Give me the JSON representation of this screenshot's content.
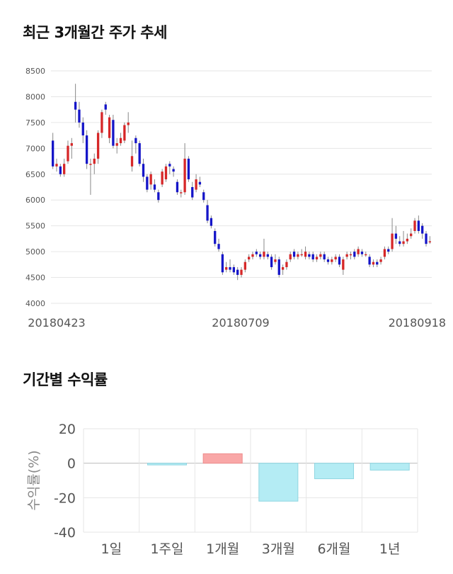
{
  "sections": {
    "price_title": "최근 3개월간 주가 추세",
    "return_title": "기간별 수익률"
  },
  "colors": {
    "up": "#d62728",
    "down": "#1515c8",
    "wick": "#888888",
    "grid": "#e6e6e6",
    "positive_bar": "#f9a7a7",
    "negative_bar": "#b4ecf4"
  },
  "chart_data": [
    {
      "type": "candlestick",
      "title": "최근 3개월간 주가 추세",
      "ylim": [
        4000,
        8500
      ],
      "yticks": [
        4000,
        4500,
        5000,
        5500,
        6000,
        6500,
        7000,
        7500,
        8000,
        8500
      ],
      "xtick_labels": [
        "20180423",
        "20180709",
        "20180918"
      ],
      "grid": true,
      "candles": [
        [
          7150,
          6650,
          7300,
          6600
        ],
        [
          6650,
          6700,
          6800,
          6550
        ],
        [
          6650,
          6500,
          6700,
          6450
        ],
        [
          6500,
          6700,
          6800,
          6450
        ],
        [
          6750,
          7050,
          7150,
          6700
        ],
        [
          7050,
          7100,
          7200,
          6800
        ],
        [
          7900,
          7750,
          8250,
          7500
        ],
        [
          7750,
          7500,
          7900,
          7400
        ],
        [
          7500,
          7250,
          7600,
          7100
        ],
        [
          7250,
          6700,
          7350,
          6600
        ],
        [
          6700,
          6700,
          6800,
          6100
        ],
        [
          6700,
          6800,
          6900,
          6500
        ],
        [
          6800,
          7300,
          7350,
          6700
        ],
        [
          7300,
          7700,
          7750,
          7200
        ],
        [
          7850,
          7750,
          7900,
          7650
        ],
        [
          7200,
          7600,
          7650,
          7100
        ],
        [
          7550,
          7050,
          7650,
          7000
        ],
        [
          7050,
          7100,
          7200,
          6900
        ],
        [
          7100,
          7200,
          7300,
          7050
        ],
        [
          7150,
          7450,
          7500,
          7100
        ],
        [
          7450,
          7500,
          7700,
          7300
        ],
        [
          6650,
          6850,
          7150,
          6550
        ],
        [
          7200,
          7100,
          7250,
          6900
        ],
        [
          7100,
          6700,
          7150,
          6650
        ],
        [
          6700,
          6450,
          6800,
          6350
        ],
        [
          6450,
          6200,
          6500,
          6150
        ],
        [
          6300,
          6500,
          6550,
          6200
        ],
        [
          6300,
          6200,
          6400,
          6150
        ],
        [
          6150,
          6000,
          6200,
          5950
        ],
        [
          6300,
          6550,
          6600,
          6250
        ],
        [
          6400,
          6650,
          6700,
          6350
        ],
        [
          6700,
          6650,
          6750,
          6500
        ],
        [
          6600,
          6550,
          6650,
          6450
        ],
        [
          6350,
          6150,
          6400,
          6100
        ],
        [
          6150,
          6150,
          6200,
          6050
        ],
        [
          6150,
          6800,
          7100,
          6100
        ],
        [
          6800,
          6400,
          6850,
          6350
        ],
        [
          6250,
          6050,
          6350,
          6000
        ],
        [
          6200,
          6400,
          6500,
          6150
        ],
        [
          6350,
          6300,
          6450,
          6250
        ],
        [
          6150,
          6000,
          6200,
          5950
        ],
        [
          5900,
          5600,
          6000,
          5550
        ],
        [
          5650,
          5500,
          5700,
          5450
        ],
        [
          5400,
          5150,
          5450,
          5100
        ],
        [
          5150,
          5050,
          5250,
          5000
        ],
        [
          4950,
          4600,
          5000,
          4550
        ],
        [
          4650,
          4700,
          4800,
          4600
        ],
        [
          4700,
          4650,
          4850,
          4600
        ],
        [
          4700,
          4600,
          4750,
          4550
        ],
        [
          4650,
          4550,
          4700,
          4450
        ],
        [
          4550,
          4650,
          4700,
          4500
        ],
        [
          4650,
          4800,
          4850,
          4600
        ],
        [
          4850,
          4900,
          4950,
          4800
        ],
        [
          4900,
          4950,
          5000,
          4850
        ],
        [
          5000,
          4950,
          5050,
          4900
        ],
        [
          4950,
          4900,
          5000,
          4850
        ],
        [
          4900,
          5000,
          5250,
          4850
        ],
        [
          4950,
          4900,
          5000,
          4850
        ],
        [
          4900,
          4700,
          4950,
          4650
        ],
        [
          4800,
          4850,
          4950,
          4750
        ],
        [
          4850,
          4550,
          4900,
          4500
        ],
        [
          4650,
          4700,
          4750,
          4550
        ],
        [
          4700,
          4800,
          4850,
          4650
        ],
        [
          4850,
          4950,
          5000,
          4800
        ],
        [
          5000,
          4900,
          5050,
          4850
        ],
        [
          4900,
          4950,
          5000,
          4850
        ],
        [
          4950,
          4950,
          5050,
          4900
        ],
        [
          4900,
          5000,
          5100,
          4850
        ],
        [
          4950,
          4900,
          5000,
          4850
        ],
        [
          4950,
          4850,
          5000,
          4800
        ],
        [
          4850,
          4900,
          4950,
          4800
        ],
        [
          4900,
          4950,
          5000,
          4850
        ],
        [
          4950,
          4850,
          5000,
          4800
        ],
        [
          4850,
          4800,
          4900,
          4750
        ],
        [
          4800,
          4850,
          4900,
          4750
        ],
        [
          4850,
          4900,
          4950,
          4800
        ],
        [
          4900,
          4750,
          4950,
          4700
        ],
        [
          4650,
          4850,
          4900,
          4550
        ],
        [
          4900,
          4950,
          5000,
          4850
        ],
        [
          4950,
          4950,
          5000,
          4850
        ],
        [
          5000,
          4900,
          5050,
          4850
        ],
        [
          4950,
          5050,
          5100,
          4900
        ],
        [
          5000,
          4950,
          5050,
          4900
        ],
        [
          4950,
          4950,
          5000,
          4900
        ],
        [
          4900,
          4750,
          4950,
          4700
        ],
        [
          4750,
          4800,
          4850,
          4700
        ],
        [
          4800,
          4750,
          4850,
          4700
        ],
        [
          4800,
          4850,
          4900,
          4750
        ],
        [
          4900,
          5050,
          5100,
          4850
        ],
        [
          5050,
          5000,
          5100,
          4950
        ],
        [
          5050,
          5350,
          5650,
          5000
        ],
        [
          5350,
          5250,
          5500,
          5150
        ],
        [
          5200,
          5150,
          5300,
          5100
        ],
        [
          5150,
          5200,
          5400,
          5100
        ],
        [
          5200,
          5250,
          5350,
          5150
        ],
        [
          5300,
          5350,
          5450,
          5250
        ],
        [
          5400,
          5600,
          5650,
          5350
        ],
        [
          5600,
          5400,
          5700,
          5350
        ],
        [
          5500,
          5350,
          5550,
          5250
        ],
        [
          5350,
          5150,
          5400,
          5100
        ],
        [
          5200,
          5200,
          5300,
          5150
        ]
      ]
    },
    {
      "type": "bar",
      "title": "기간별 수익률",
      "ylabel": "수익률(%)",
      "ylim": [
        -40,
        20
      ],
      "yticks": [
        20,
        0,
        -20,
        -40
      ],
      "categories": [
        "1일",
        "1주일",
        "1개월",
        "3개월",
        "6개월",
        "1년"
      ],
      "values": [
        0,
        -1,
        5.5,
        -22,
        -9,
        -4
      ],
      "grid": true
    }
  ]
}
